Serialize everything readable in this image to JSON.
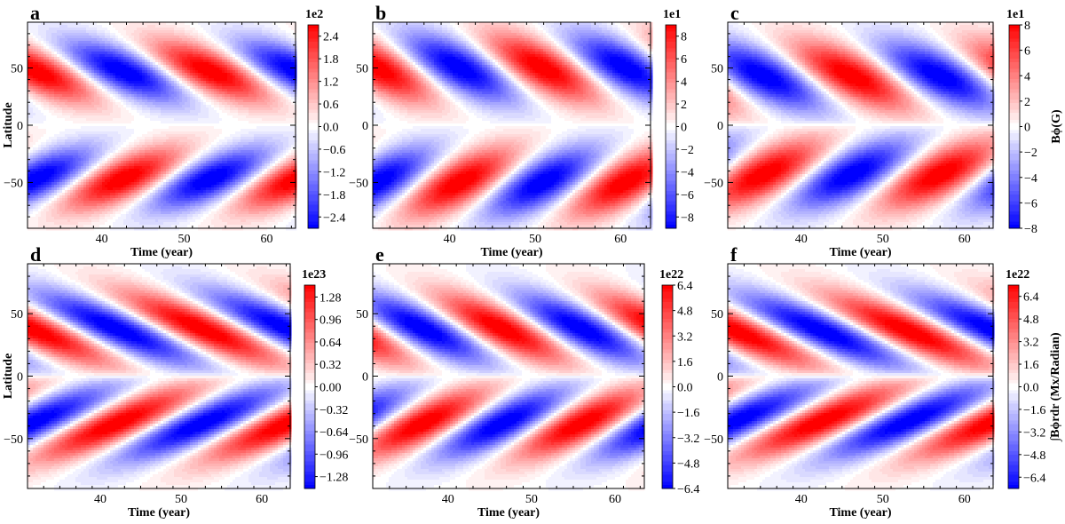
{
  "chart_data": [
    {
      "type": "heatmap",
      "panel_label": "a",
      "xlabel": "Time (year)",
      "ylabel": "Latitude",
      "xlim": [
        31,
        63.5
      ],
      "ylim": [
        -90,
        90
      ],
      "xticks": [
        "40",
        "50",
        "60"
      ],
      "yticks": [
        "50",
        "0",
        "−50"
      ],
      "colorbar": {
        "exponent": "1e2",
        "range": [
          -2.7,
          2.7
        ],
        "ticks": [
          "2.4",
          "1.8",
          "1.2",
          "0.6",
          "0.0",
          "−0.6",
          "−1.2",
          "−1.8",
          "−2.4"
        ],
        "tick_values": [
          2.4,
          1.8,
          1.2,
          0.6,
          0.0,
          -0.6,
          -1.2,
          -1.8,
          -2.4
        ],
        "label": ""
      },
      "pattern": {
        "period_years": 21.2,
        "phase_peak_year": 42.6,
        "peak_latitude": 47,
        "tilt": 0.045,
        "lat_width": 27,
        "north_sign": -1
      }
    },
    {
      "type": "heatmap",
      "panel_label": "b",
      "xlabel": "Time (year)",
      "ylabel": "",
      "xlim": [
        31,
        63.5
      ],
      "ylim": [
        -90,
        90
      ],
      "xticks": [
        "40",
        "50",
        "60"
      ],
      "yticks": [
        "50",
        "0",
        "−50"
      ],
      "colorbar": {
        "exponent": "1e1",
        "range": [
          -9,
          9
        ],
        "ticks": [
          "8",
          "6",
          "4",
          "2",
          "0",
          "−2",
          "−4",
          "−6",
          "−8"
        ],
        "tick_values": [
          8,
          6,
          4,
          2,
          0,
          -2,
          -4,
          -6,
          -8
        ],
        "label": ""
      },
      "pattern": {
        "period_years": 19.4,
        "phase_peak_year": 41.2,
        "peak_latitude": 50,
        "tilt": 0.04,
        "lat_width": 30,
        "north_sign": -1
      }
    },
    {
      "type": "heatmap",
      "panel_label": "c",
      "xlabel": "Time (year)",
      "ylabel": "",
      "xlim": [
        31,
        63.5
      ],
      "ylim": [
        -90,
        90
      ],
      "xticks": [
        "40",
        "50",
        "60"
      ],
      "yticks": [
        "50",
        "0",
        "−50"
      ],
      "colorbar": {
        "exponent": "1e1",
        "range": [
          -8,
          8
        ],
        "ticks": [
          "8",
          "6",
          "4",
          "2",
          "0",
          "−2",
          "−4",
          "−6",
          "−8"
        ],
        "tick_values": [
          8,
          6,
          4,
          2,
          0,
          -2,
          -4,
          -6,
          -8
        ],
        "label": "Bϕ(G)"
      },
      "pattern": {
        "period_years": 21.6,
        "phase_peak_year": 46.2,
        "peak_latitude": 43,
        "tilt": 0.04,
        "lat_width": 30,
        "north_sign": 1
      }
    },
    {
      "type": "heatmap",
      "panel_label": "d",
      "xlabel": "Time (year)",
      "ylabel": "Latitude",
      "xlim": [
        31,
        63.5
      ],
      "ylim": [
        -90,
        90
      ],
      "xticks": [
        "40",
        "50",
        "60"
      ],
      "yticks": [
        "50",
        "0",
        "−50"
      ],
      "colorbar": {
        "exponent": "1e23",
        "range": [
          -1.45,
          1.45
        ],
        "ticks": [
          "1.28",
          "0.96",
          "0.64",
          "0.32",
          "0.00",
          "−0.32",
          "−0.64",
          "−0.96",
          "−1.28"
        ],
        "tick_values": [
          1.28,
          0.96,
          0.64,
          0.32,
          0.0,
          -0.32,
          -0.64,
          -0.96,
          -1.28
        ],
        "label": ""
      },
      "pattern": {
        "period_years": 21.2,
        "phase_peak_year": 42.0,
        "peak_latitude": 38,
        "tilt": 0.07,
        "lat_width": 30,
        "north_sign": -1
      }
    },
    {
      "type": "heatmap",
      "panel_label": "e",
      "xlabel": "Time (year)",
      "ylabel": "",
      "xlim": [
        31,
        63.5
      ],
      "ylim": [
        -90,
        90
      ],
      "xticks": [
        "40",
        "50",
        "60"
      ],
      "yticks": [
        "50",
        "0",
        "−50"
      ],
      "colorbar": {
        "exponent": "1e22",
        "range": [
          -6.4,
          6.4
        ],
        "ticks": [
          "6.4",
          "4.8",
          "3.2",
          "1.6",
          "0.0",
          "−1.6",
          "−3.2",
          "−4.8",
          "−6.4"
        ],
        "tick_values": [
          6.4,
          4.8,
          3.2,
          1.6,
          0.0,
          -1.6,
          -3.2,
          -4.8,
          -6.4
        ],
        "label": ""
      },
      "pattern": {
        "period_years": 19.0,
        "phase_peak_year": 46.5,
        "peak_latitude": 38,
        "tilt": 0.06,
        "lat_width": 28,
        "north_sign": 1
      }
    },
    {
      "type": "heatmap",
      "panel_label": "f",
      "xlabel": "Time (year)",
      "ylabel": "",
      "xlim": [
        31,
        63.5
      ],
      "ylim": [
        -90,
        90
      ],
      "xticks": [
        "40",
        "50",
        "60"
      ],
      "yticks": [
        "50",
        "0",
        "−50"
      ],
      "colorbar": {
        "exponent": "1e22",
        "range": [
          -7.2,
          7.2
        ],
        "ticks": [
          "6.4",
          "4.8",
          "3.2",
          "1.6",
          "0.0",
          "−1.6",
          "−3.2",
          "−4.8",
          "−6.4"
        ],
        "tick_values": [
          6.4,
          4.8,
          3.2,
          1.6,
          0.0,
          -1.6,
          -3.2,
          -4.8,
          -6.4
        ],
        "label": "∫Bϕrdr (Mx/Radian)"
      },
      "pattern": {
        "period_years": 21.2,
        "phase_peak_year": 42.6,
        "peak_latitude": 36,
        "tilt": 0.07,
        "lat_width": 30,
        "north_sign": -1
      }
    }
  ],
  "colors": {
    "negative": "#0000ff",
    "zero": "#ffffff",
    "positive": "#ff0000"
  }
}
